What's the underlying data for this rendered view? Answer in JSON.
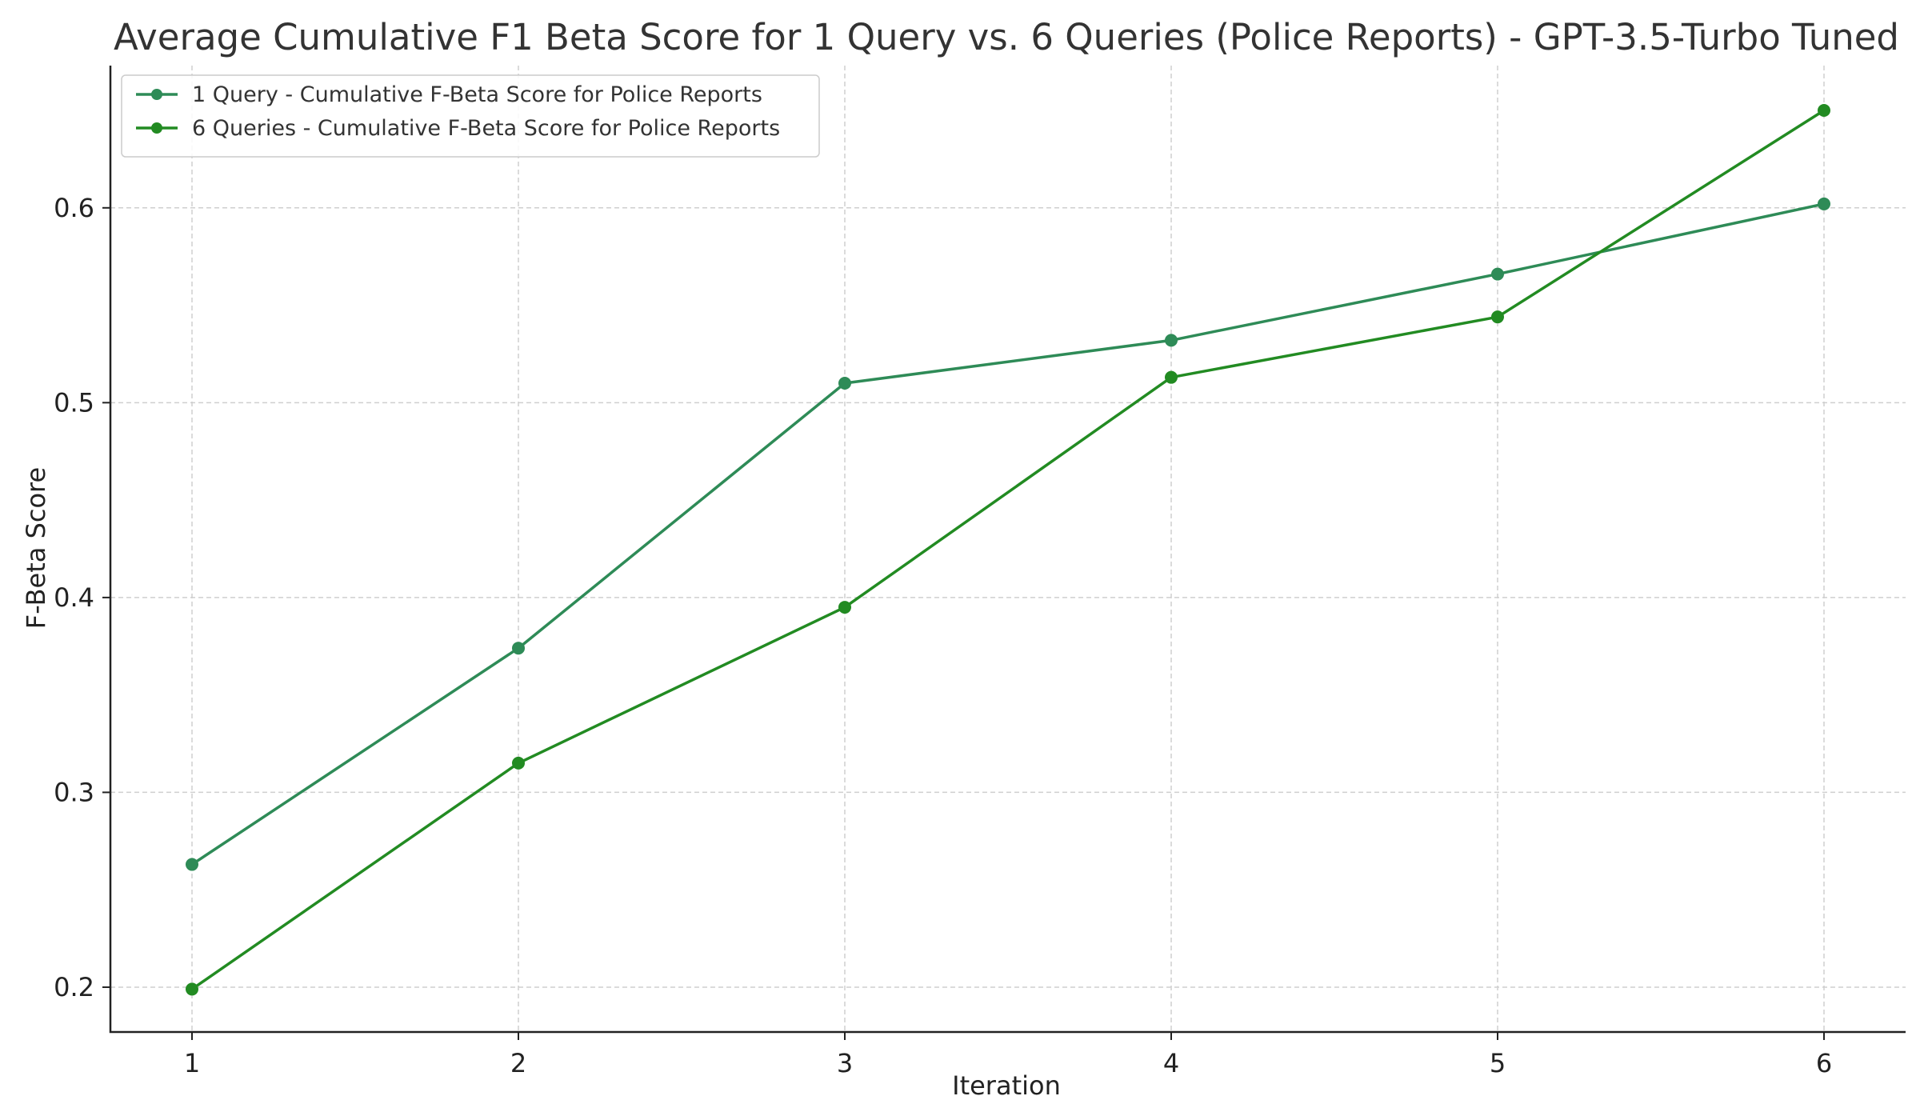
{
  "chart_data": {
    "type": "line",
    "title": "Average Cumulative F1 Beta Score for 1 Query vs. 6 Queries (Police Reports) - GPT-3.5-Turbo Tuned",
    "xlabel": "Iteration",
    "ylabel": "F-Beta Score",
    "x": [
      1,
      2,
      3,
      4,
      5,
      6
    ],
    "xlim": [
      0.75,
      6.25
    ],
    "ylim": [
      0.177,
      0.673
    ],
    "xticks": [
      "1",
      "2",
      "3",
      "4",
      "5",
      "6"
    ],
    "yticks": [
      0.2,
      0.3,
      0.4,
      0.5,
      0.6
    ],
    "ytick_labels": [
      "0.2",
      "0.3",
      "0.4",
      "0.5",
      "0.6"
    ],
    "grid": true,
    "legend_position": "top-left",
    "series": [
      {
        "name": "1 Query - Cumulative F-Beta Score for Police Reports",
        "color": "#2e8b57",
        "values": [
          0.263,
          0.374,
          0.51,
          0.532,
          0.566,
          0.602
        ]
      },
      {
        "name": "6 Queries - Cumulative F-Beta Score for Police Reports",
        "color": "#228b22",
        "values": [
          0.199,
          0.315,
          0.395,
          0.513,
          0.544,
          0.65
        ]
      }
    ]
  }
}
